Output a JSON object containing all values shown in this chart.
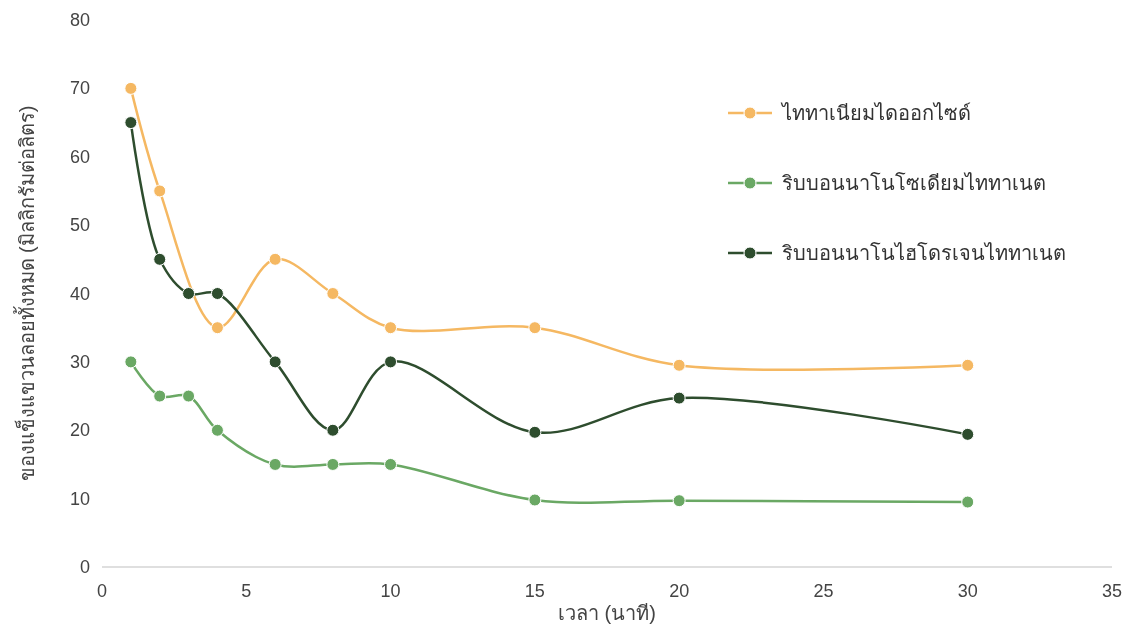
{
  "chart_data": {
    "type": "line",
    "xlabel": "เวลา (นาที)",
    "ylabel": "ของแข็งแขวนลอยทั้งหมด (มิลลิกรัมต่อลิตร)",
    "xlim": [
      0,
      35
    ],
    "xticks": [
      0,
      5,
      10,
      15,
      20,
      25,
      30,
      35
    ],
    "ylim": [
      0,
      80
    ],
    "yticks": [
      0,
      10,
      20,
      30,
      40,
      50,
      60,
      70,
      80
    ],
    "grid": false,
    "legend": "top right",
    "marker": "circle",
    "line_style": "solid",
    "series": [
      {
        "name": "ไททาเนียมไดออกไซด์",
        "color": "#f5b862",
        "x": [
          1,
          2,
          4,
          6,
          8,
          10,
          15,
          20,
          30
        ],
        "values": [
          70,
          55,
          35,
          45,
          40,
          35,
          35,
          29.5,
          29.5
        ]
      },
      {
        "name": "ริบบอนนาโนโซเดียมไททาเนต",
        "color": "#6aa864",
        "x": [
          1,
          2,
          3,
          4,
          6,
          8,
          10,
          15,
          20,
          30
        ],
        "values": [
          30,
          25,
          25,
          20,
          15,
          15,
          15,
          9.8,
          9.7,
          9.5
        ]
      },
      {
        "name": "ริบบอนนาโนไฮโดรเจนไททาเนต",
        "color": "#2e4d2e",
        "x": [
          1,
          2,
          3,
          4,
          6,
          8,
          10,
          15,
          20,
          30
        ],
        "values": [
          65,
          45,
          40,
          40,
          30,
          20,
          30,
          19.7,
          24.7,
          19.4
        ]
      }
    ]
  }
}
